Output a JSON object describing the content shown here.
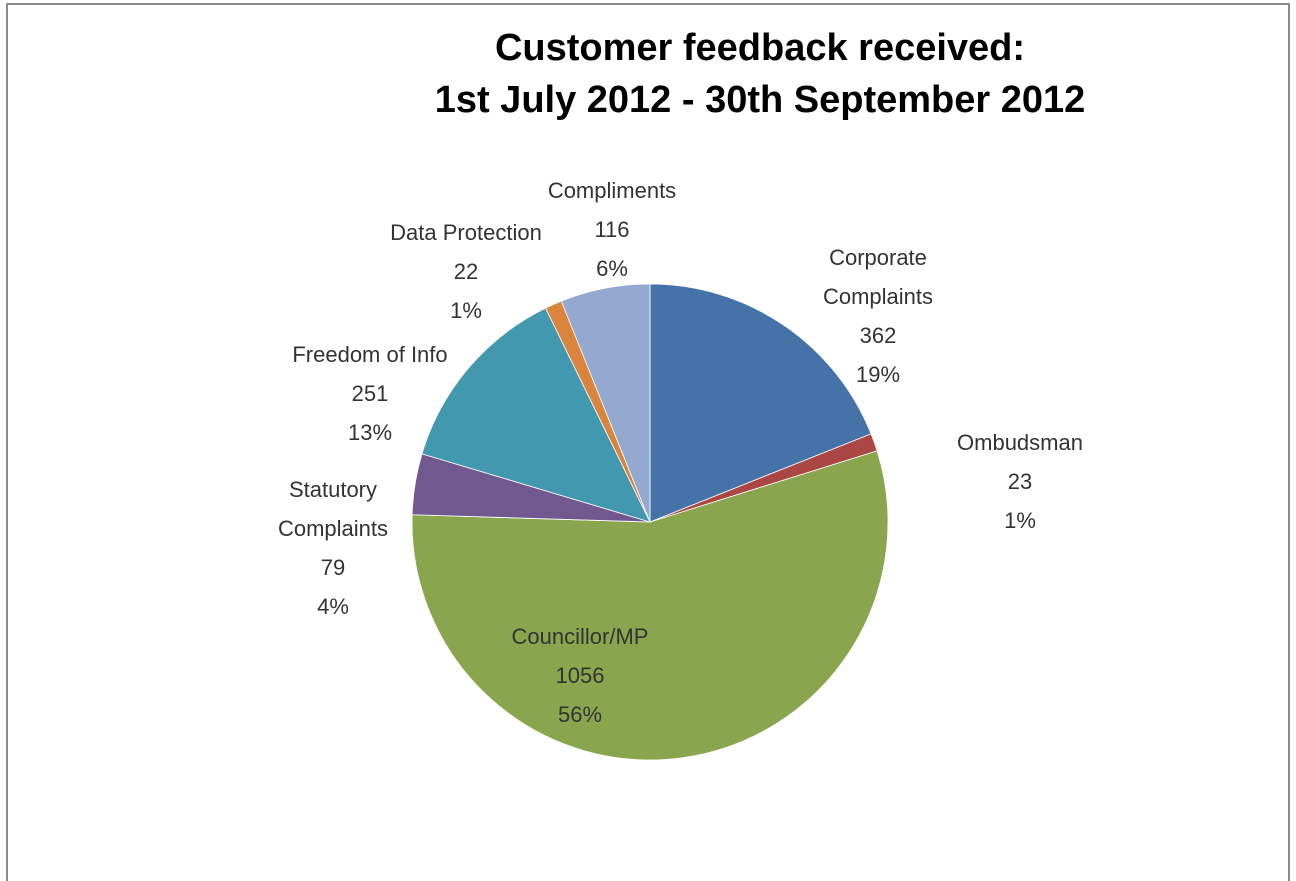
{
  "chart_data": {
    "type": "pie",
    "title": "Customer feedback received:",
    "subtitle": "1st July 2012 -  30th September 2012",
    "categories": [
      "Corporate Complaints",
      "Ombudsman",
      "Councillor/MP",
      "Statutory Complaints",
      "Freedom of Info",
      "Data Protection",
      "Compliments"
    ],
    "values": [
      362,
      23,
      1056,
      79,
      251,
      22,
      116
    ],
    "percent_labels": [
      "19%",
      "1%",
      "56%",
      "4%",
      "13%",
      "1%",
      "6%"
    ],
    "colors": [
      "#4572a7",
      "#aa4643",
      "#89a54e",
      "#71588f",
      "#4198af",
      "#db843d",
      "#93a9cf"
    ]
  }
}
